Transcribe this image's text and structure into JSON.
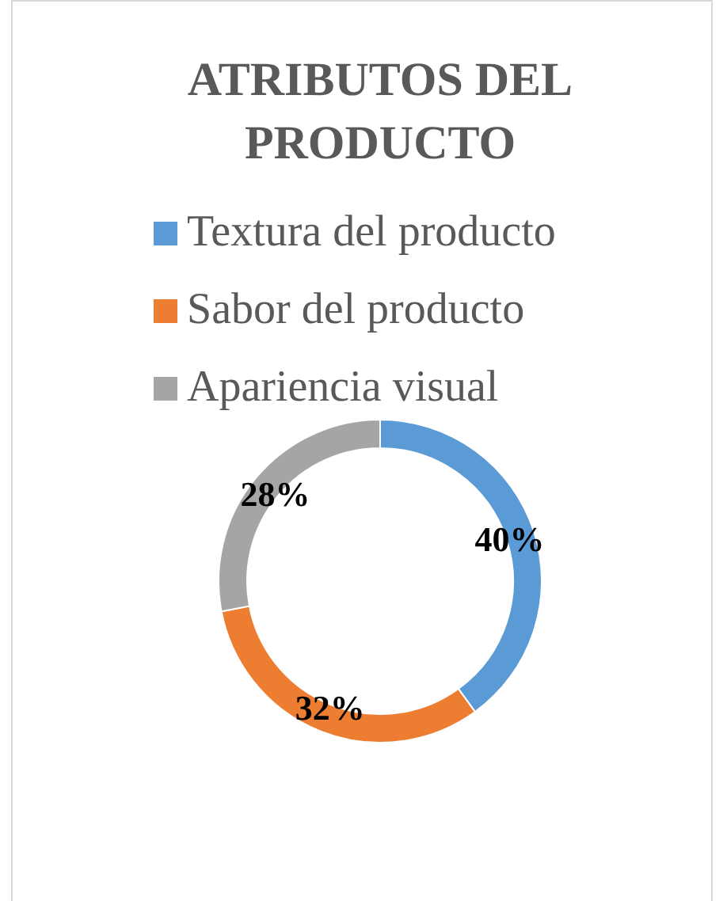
{
  "chart_data": {
    "type": "donut",
    "title": "ATRIBUTOS DEL PRODUCTO",
    "categories": [
      "Textura del producto",
      "Sabor del producto",
      "Apariencia visual"
    ],
    "values": [
      40,
      32,
      28
    ],
    "colors": [
      "#5b9bd5",
      "#ed7d31",
      "#a5a5a5"
    ],
    "value_labels": [
      "40%",
      "32%",
      "28%"
    ],
    "legend": "top"
  }
}
